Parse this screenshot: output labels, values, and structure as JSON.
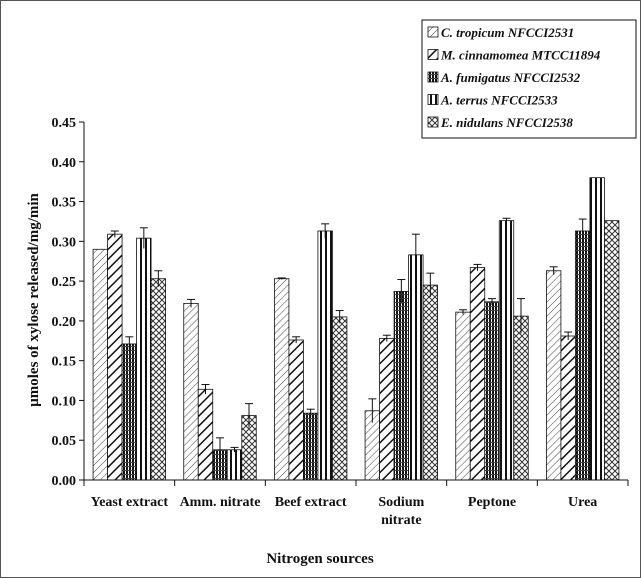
{
  "chart_data": {
    "type": "bar",
    "xlabel": "Nitrogen sources",
    "ylabel": "µmoles of xylose released/mg/min",
    "ylim": [
      0,
      0.45
    ],
    "yticks": [
      "0.00",
      "0.05",
      "0.10",
      "0.15",
      "0.20",
      "0.25",
      "0.30",
      "0.35",
      "0.40",
      "0.45"
    ],
    "categories": [
      [
        "Yeast extract"
      ],
      [
        "Amm. nitrate"
      ],
      [
        "Beef extract"
      ],
      [
        "Sodium",
        "nitrate"
      ],
      [
        "Peptone"
      ],
      [
        "Urea"
      ]
    ],
    "legend_position": "top-right",
    "series": [
      {
        "name": "C. tropicum NFCCI2531",
        "pattern": "diag-thin",
        "values": [
          0.29,
          0.222,
          0.253,
          0.087,
          0.211,
          0.263
        ],
        "errors": [
          0.0,
          0.005,
          0.001,
          0.015,
          0.003,
          0.005
        ]
      },
      {
        "name": "M. cinnamomea MTCC11894",
        "pattern": "diag-bold",
        "values": [
          0.309,
          0.114,
          0.176,
          0.178,
          0.267,
          0.181
        ],
        "errors": [
          0.004,
          0.006,
          0.004,
          0.004,
          0.004,
          0.005
        ]
      },
      {
        "name": "A. fumigatus NFCCI2532",
        "pattern": "vert-dense",
        "values": [
          0.171,
          0.038,
          0.084,
          0.237,
          0.224,
          0.313
        ],
        "errors": [
          0.009,
          0.015,
          0.005,
          0.015,
          0.004,
          0.015
        ]
      },
      {
        "name": "A. terrus NFCCI2533",
        "pattern": "vert-wide",
        "values": [
          0.304,
          0.038,
          0.313,
          0.283,
          0.326,
          0.38
        ],
        "errors": [
          0.013,
          0.003,
          0.009,
          0.026,
          0.003,
          0.0
        ]
      },
      {
        "name": "E. nidulans NFCCI2538",
        "pattern": "cross",
        "values": [
          0.253,
          0.081,
          0.205,
          0.245,
          0.206,
          0.326
        ],
        "errors": [
          0.01,
          0.015,
          0.008,
          0.015,
          0.022,
          0.0
        ]
      }
    ]
  }
}
